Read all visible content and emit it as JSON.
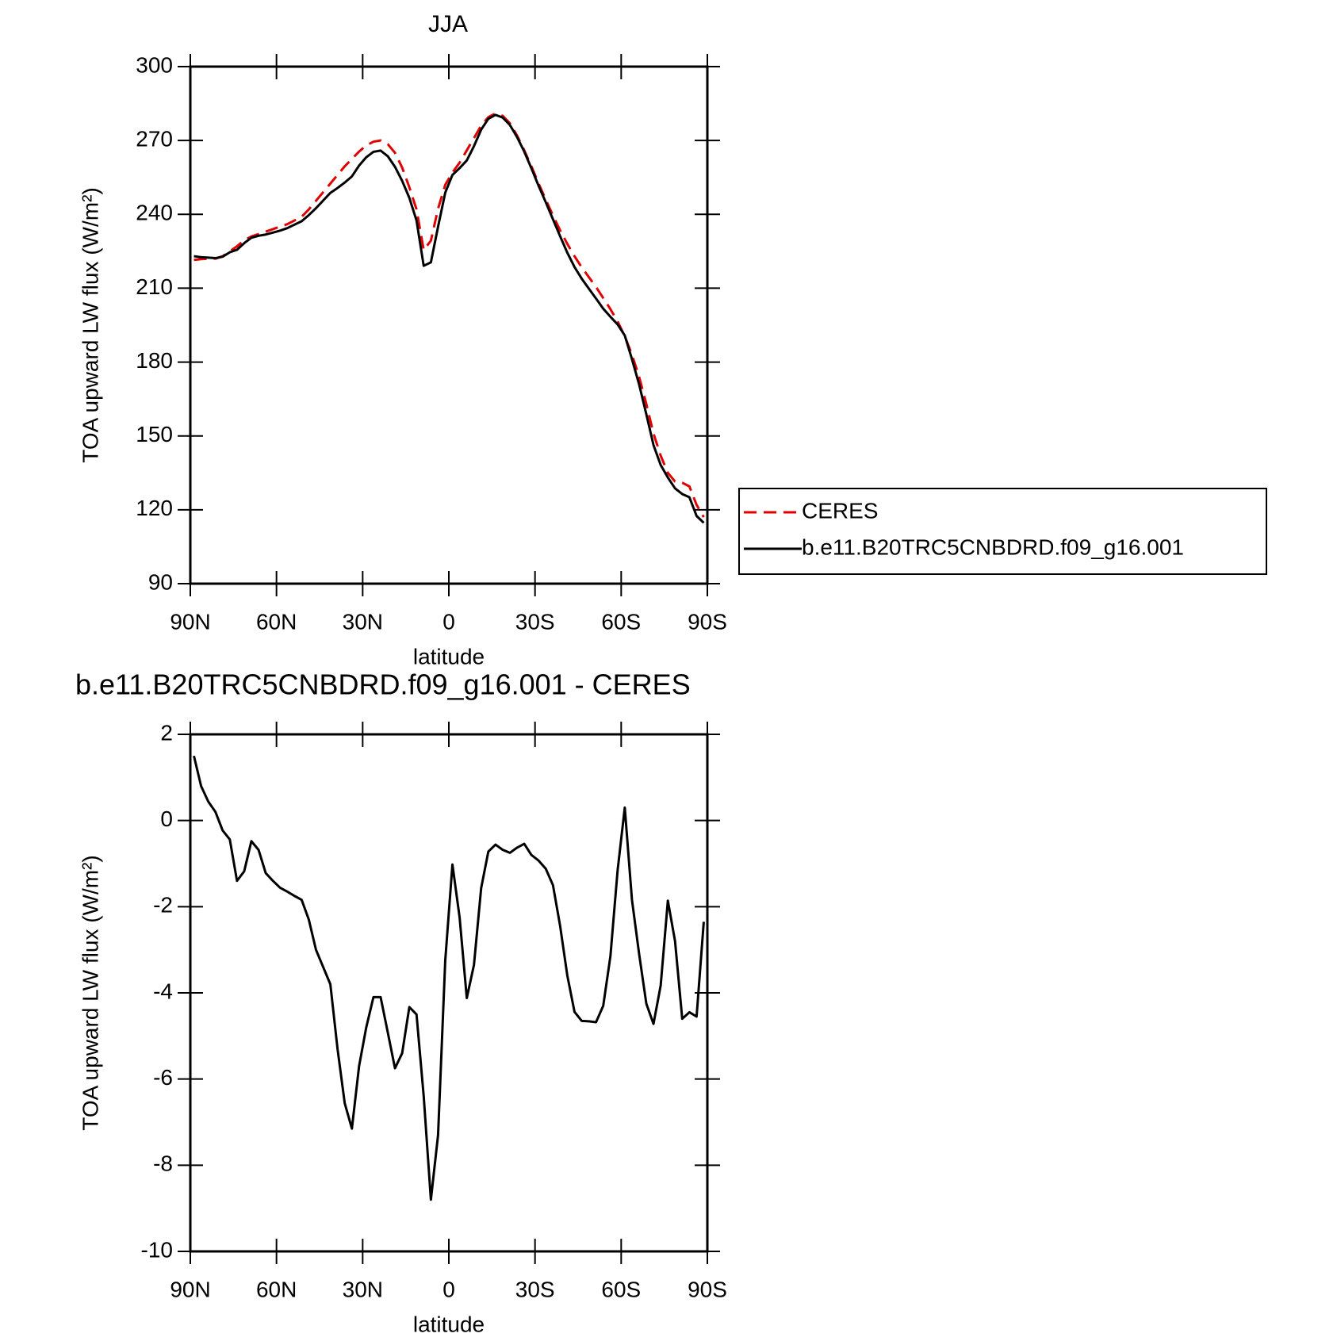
{
  "chart_data": [
    {
      "type": "line",
      "title": "JJA",
      "x_label": "latitude",
      "y_label": "TOA upward LW flux (W/m²)",
      "x": [
        88.75,
        86.25,
        83.75,
        81.25,
        78.75,
        76.25,
        73.75,
        71.25,
        68.75,
        66.25,
        63.75,
        61.25,
        58.75,
        56.25,
        53.75,
        51.25,
        48.75,
        46.25,
        43.75,
        41.25,
        38.75,
        36.25,
        33.75,
        31.25,
        28.75,
        26.25,
        23.75,
        21.25,
        18.75,
        16.25,
        13.75,
        11.25,
        8.75,
        6.25,
        3.75,
        1.25,
        -1.25,
        -3.75,
        -6.25,
        -8.75,
        -11.25,
        -13.75,
        -16.25,
        -18.75,
        -21.25,
        -23.75,
        -26.25,
        -28.75,
        -31.25,
        -33.75,
        -36.25,
        -38.75,
        -41.25,
        -43.75,
        -46.25,
        -48.75,
        -51.25,
        -53.75,
        -56.25,
        -58.75,
        -61.25,
        -63.75,
        -66.25,
        -68.75,
        -71.25,
        -73.75,
        -76.25,
        -78.75,
        -81.25,
        -83.75,
        -86.25,
        -88.75
      ],
      "xlim": [
        90,
        -90
      ],
      "xticks": [
        {
          "value": 90,
          "label": "90N"
        },
        {
          "value": 60,
          "label": "60N"
        },
        {
          "value": 30,
          "label": "30N"
        },
        0,
        {
          "value": -30,
          "label": "30S"
        },
        {
          "value": -60,
          "label": "60S"
        },
        {
          "value": -90,
          "label": "90S"
        }
      ],
      "ylim": [
        90,
        300
      ],
      "yticks": [
        90,
        120,
        150,
        180,
        210,
        240,
        270,
        300
      ],
      "series": [
        {
          "name": "CERES",
          "color": "#e00000",
          "dashed": true,
          "values": [
            221.5,
            221.8,
            222,
            222,
            223,
            225,
            227,
            229.5,
            231,
            232,
            233,
            234,
            235,
            236,
            237.5,
            239,
            242,
            245.5,
            249,
            252.5,
            256,
            259.5,
            262.5,
            265.5,
            268,
            269.5,
            270,
            268.5,
            265,
            259,
            251,
            242,
            225.5,
            229.3,
            242.3,
            252,
            257,
            261,
            266,
            271,
            276,
            279.5,
            281,
            280,
            277,
            272,
            266,
            259.5,
            252.5,
            246,
            239.5,
            233.5,
            228,
            223,
            218.5,
            214.5,
            210.5,
            206,
            201.5,
            196.5,
            190.5,
            183,
            174,
            163,
            151,
            142,
            135,
            131.5,
            131,
            129.5,
            122,
            117
          ]
        },
        {
          "name": "b.e11.B20TRC5CNBDRD.f09_g16.001",
          "color": "#000000",
          "dashed": false,
          "values": [
            223.0,
            222.6,
            222.4,
            222.2,
            222.8,
            224.6,
            225.6,
            228.3,
            230.5,
            231.3,
            231.8,
            232.6,
            233.4,
            234.4,
            235.8,
            237.2,
            239.7,
            242.5,
            245.6,
            248.7,
            250.7,
            252.9,
            255.4,
            259.8,
            263.2,
            265.4,
            265.9,
            263.6,
            259.3,
            253.6,
            246.7,
            237.5,
            219.1,
            220.5,
            235.0,
            248.8,
            256.0,
            258.8,
            261.9,
            267.7,
            274.4,
            278.8,
            280.4,
            279.3,
            276.3,
            271.4,
            265.5,
            258.7,
            251.6,
            244.9,
            238.0,
            231.1,
            224.4,
            218.6,
            213.9,
            209.8,
            205.8,
            201.7,
            198.4,
            195.3,
            190.8,
            181.2,
            170.9,
            158.8,
            146.3,
            138.2,
            133.1,
            128.7,
            126.4,
            125.1,
            117.5,
            114.7
          ]
        }
      ]
    },
    {
      "type": "line",
      "title": "b.e11.B20TRC5CNBDRD.f09_g16.001 - CERES",
      "x_label": "latitude",
      "y_label": "TOA upward LW flux (W/m²)",
      "x": [
        88.75,
        86.25,
        83.75,
        81.25,
        78.75,
        76.25,
        73.75,
        71.25,
        68.75,
        66.25,
        63.75,
        61.25,
        58.75,
        56.25,
        53.75,
        51.25,
        48.75,
        46.25,
        43.75,
        41.25,
        38.75,
        36.25,
        33.75,
        31.25,
        28.75,
        26.25,
        23.75,
        21.25,
        18.75,
        16.25,
        13.75,
        11.25,
        8.75,
        6.25,
        3.75,
        1.25,
        -1.25,
        -3.75,
        -6.25,
        -8.75,
        -11.25,
        -13.75,
        -16.25,
        -18.75,
        -21.25,
        -23.75,
        -26.25,
        -28.75,
        -31.25,
        -33.75,
        -36.25,
        -38.75,
        -41.25,
        -43.75,
        -46.25,
        -48.75,
        -51.25,
        -53.75,
        -56.25,
        -58.75,
        -61.25,
        -63.75,
        -66.25,
        -68.75,
        -71.25,
        -73.75,
        -76.25,
        -78.75,
        -81.25,
        -83.75,
        -86.25,
        -88.75
      ],
      "xlim": [
        90,
        -90
      ],
      "xticks": [
        {
          "value": 90,
          "label": "90N"
        },
        {
          "value": 60,
          "label": "60N"
        },
        {
          "value": 30,
          "label": "30N"
        },
        0,
        {
          "value": -30,
          "label": "30S"
        },
        {
          "value": -60,
          "label": "60S"
        },
        {
          "value": -90,
          "label": "90S"
        }
      ],
      "ylim": [
        -10,
        2
      ],
      "yticks": [
        -10,
        -8,
        -6,
        -4,
        -2,
        0,
        2
      ],
      "series": [
        {
          "color": "#000000",
          "dashed": false,
          "values": [
            1.5,
            0.8,
            0.44,
            0.2,
            -0.23,
            -0.44,
            -1.4,
            -1.18,
            -0.48,
            -0.68,
            -1.22,
            -1.4,
            -1.56,
            -1.65,
            -1.75,
            -1.84,
            -2.3,
            -3.0,
            -3.4,
            -3.8,
            -5.3,
            -6.56,
            -7.15,
            -5.7,
            -4.8,
            -4.1,
            -4.1,
            -4.92,
            -5.75,
            -5.4,
            -4.33,
            -4.5,
            -6.4,
            -8.8,
            -7.3,
            -3.25,
            -1.02,
            -2.25,
            -4.12,
            -3.35,
            -1.57,
            -0.72,
            -0.56,
            -0.68,
            -0.75,
            -0.63,
            -0.54,
            -0.8,
            -0.93,
            -1.12,
            -1.5,
            -2.45,
            -3.6,
            -4.44,
            -4.65,
            -4.66,
            -4.68,
            -4.3,
            -3.15,
            -1.16,
            0.3,
            -1.84,
            -3.1,
            -4.25,
            -4.72,
            -3.83,
            -1.86,
            -2.8,
            -4.6,
            -4.45,
            -4.55,
            -2.35
          ]
        }
      ]
    }
  ]
}
